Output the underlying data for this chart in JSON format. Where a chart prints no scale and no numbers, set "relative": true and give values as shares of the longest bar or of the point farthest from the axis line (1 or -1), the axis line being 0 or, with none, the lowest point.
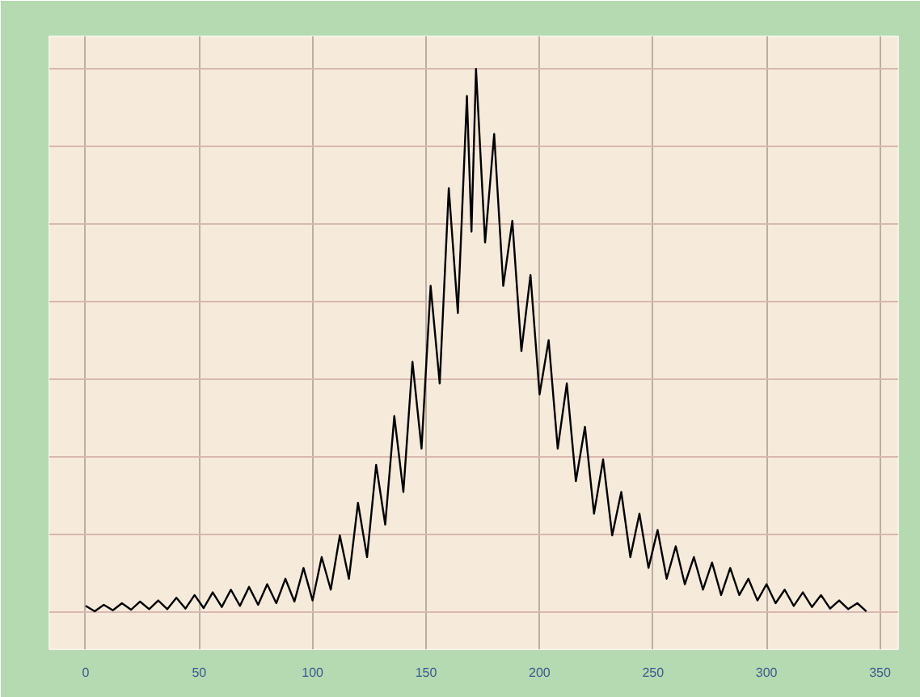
{
  "chart_data": {
    "type": "line",
    "relative": true,
    "tick_labels": "x",
    "grid": true,
    "xlim": [
      -16,
      358
    ],
    "xticks": [
      0,
      50,
      100,
      150,
      200,
      250,
      300,
      350
    ],
    "x": [
      0,
      4,
      8,
      12,
      16,
      20,
      24,
      28,
      32,
      36,
      40,
      44,
      48,
      52,
      56,
      60,
      64,
      68,
      72,
      76,
      80,
      84,
      88,
      92,
      96,
      100,
      104,
      108,
      112,
      116,
      120,
      124,
      128,
      132,
      136,
      140,
      144,
      148,
      152,
      156,
      160,
      164,
      168,
      170,
      172,
      176,
      180,
      184,
      188,
      192,
      196,
      200,
      204,
      208,
      212,
      216,
      220,
      224,
      228,
      232,
      236,
      240,
      244,
      248,
      252,
      256,
      260,
      264,
      268,
      272,
      276,
      280,
      284,
      288,
      292,
      296,
      300,
      304,
      308,
      312,
      316,
      320,
      324,
      328,
      332,
      336,
      340,
      344
    ],
    "series": [
      {
        "color": "#000000",
        "values": [
          0.01,
          0.0,
          0.012,
          0.002,
          0.015,
          0.003,
          0.018,
          0.004,
          0.02,
          0.004,
          0.025,
          0.005,
          0.03,
          0.006,
          0.035,
          0.008,
          0.04,
          0.01,
          0.045,
          0.012,
          0.05,
          0.015,
          0.06,
          0.018,
          0.08,
          0.02,
          0.1,
          0.04,
          0.14,
          0.06,
          0.2,
          0.1,
          0.27,
          0.16,
          0.36,
          0.22,
          0.46,
          0.3,
          0.6,
          0.42,
          0.78,
          0.55,
          0.95,
          0.7,
          1.0,
          0.68,
          0.88,
          0.6,
          0.72,
          0.48,
          0.62,
          0.4,
          0.5,
          0.3,
          0.42,
          0.24,
          0.34,
          0.18,
          0.28,
          0.14,
          0.22,
          0.1,
          0.18,
          0.08,
          0.15,
          0.06,
          0.12,
          0.05,
          0.1,
          0.04,
          0.09,
          0.03,
          0.08,
          0.03,
          0.06,
          0.02,
          0.05,
          0.015,
          0.04,
          0.01,
          0.035,
          0.008,
          0.03,
          0.005,
          0.02,
          0.004,
          0.015,
          0.0
        ]
      }
    ]
  }
}
